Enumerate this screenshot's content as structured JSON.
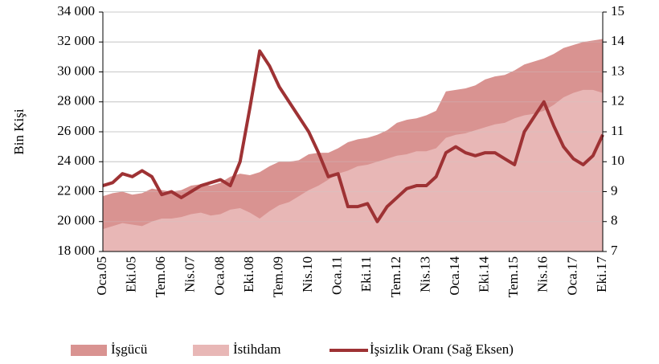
{
  "chart_data": {
    "type": "area-line",
    "y_label": "Bin Kişi",
    "categories": [
      "Oca.05",
      null,
      null,
      "Eki.05",
      null,
      null,
      "Tem.06",
      null,
      null,
      "Nis.07",
      null,
      null,
      "Oca.08",
      null,
      null,
      "Eki.08",
      null,
      null,
      "Tem.09",
      null,
      null,
      "Nis.10",
      null,
      null,
      "Oca.11",
      null,
      null,
      "Eki.11",
      null,
      null,
      "Tem.12",
      null,
      null,
      "Nis.13",
      null,
      null,
      "Oca.14",
      null,
      null,
      "Eki.14",
      null,
      null,
      "Tem.15",
      null,
      null,
      "Nis.16",
      null,
      null,
      "Oca.17",
      null,
      null,
      "Eki.17"
    ],
    "series": [
      {
        "name": "İşgücü",
        "color": "#d99391",
        "kind": "area",
        "values": [
          21700,
          21900,
          22000,
          21800,
          21900,
          22200,
          22100,
          22000,
          22100,
          22400,
          22500,
          22400,
          22600,
          23000,
          23200,
          23100,
          23300,
          23700,
          24000,
          24000,
          24100,
          24500,
          24600,
          24600,
          24900,
          25300,
          25500,
          25600,
          25800,
          26100,
          26600,
          26800,
          26900,
          27100,
          27400,
          28700,
          28800,
          28900,
          29100,
          29500,
          29700,
          29800,
          30100,
          30500,
          30700,
          30900,
          31200,
          31600,
          31800,
          32000,
          32100,
          32200
        ]
      },
      {
        "name": "İstihdam",
        "color": "#e8b7b6",
        "kind": "area",
        "values": [
          19500,
          19700,
          19900,
          19800,
          19700,
          20000,
          20200,
          20200,
          20300,
          20500,
          20600,
          20400,
          20500,
          20800,
          20900,
          20600,
          20200,
          20700,
          21100,
          21300,
          21700,
          22100,
          22400,
          22800,
          23200,
          23400,
          23700,
          23800,
          24000,
          24200,
          24400,
          24500,
          24700,
          24700,
          24900,
          25600,
          25800,
          25900,
          26100,
          26300,
          26500,
          26600,
          26900,
          27100,
          27200,
          27400,
          27800,
          28300,
          28600,
          28800,
          28800,
          28600
        ]
      },
      {
        "name": "İşsizlik Oranı (Sağ Eksen)",
        "color": "#9e3234",
        "kind": "line",
        "axis": "y2",
        "values": [
          9.2,
          9.3,
          9.6,
          9.5,
          9.7,
          9.5,
          8.9,
          9.0,
          8.8,
          9.0,
          9.2,
          9.3,
          9.4,
          9.2,
          10.0,
          11.8,
          13.7,
          13.2,
          12.5,
          12.0,
          11.5,
          11.0,
          10.3,
          9.5,
          9.6,
          8.5,
          8.5,
          8.6,
          8.0,
          8.5,
          8.8,
          9.1,
          9.2,
          9.2,
          9.5,
          10.3,
          10.5,
          10.3,
          10.2,
          10.3,
          10.3,
          10.1,
          9.9,
          11.0,
          11.5,
          12.0,
          11.2,
          10.5,
          10.1,
          9.9,
          10.2,
          10.9
        ]
      }
    ],
    "ylim": [
      18000,
      34000
    ],
    "yticks": [
      {
        "value": 18000,
        "label": "18 000"
      },
      {
        "value": 20000,
        "label": "20 000"
      },
      {
        "value": 22000,
        "label": "22 000"
      },
      {
        "value": 24000,
        "label": "24 000"
      },
      {
        "value": 26000,
        "label": "26 000"
      },
      {
        "value": 28000,
        "label": "28 000"
      },
      {
        "value": 30000,
        "label": "30 000"
      },
      {
        "value": 32000,
        "label": "32 000"
      },
      {
        "value": 34000,
        "label": "34 000"
      }
    ],
    "y2lim": [
      7,
      15
    ],
    "y2ticks": [
      7,
      8,
      9,
      10,
      11,
      12,
      13,
      14,
      15
    ],
    "grid": true,
    "legend": "bottom"
  }
}
